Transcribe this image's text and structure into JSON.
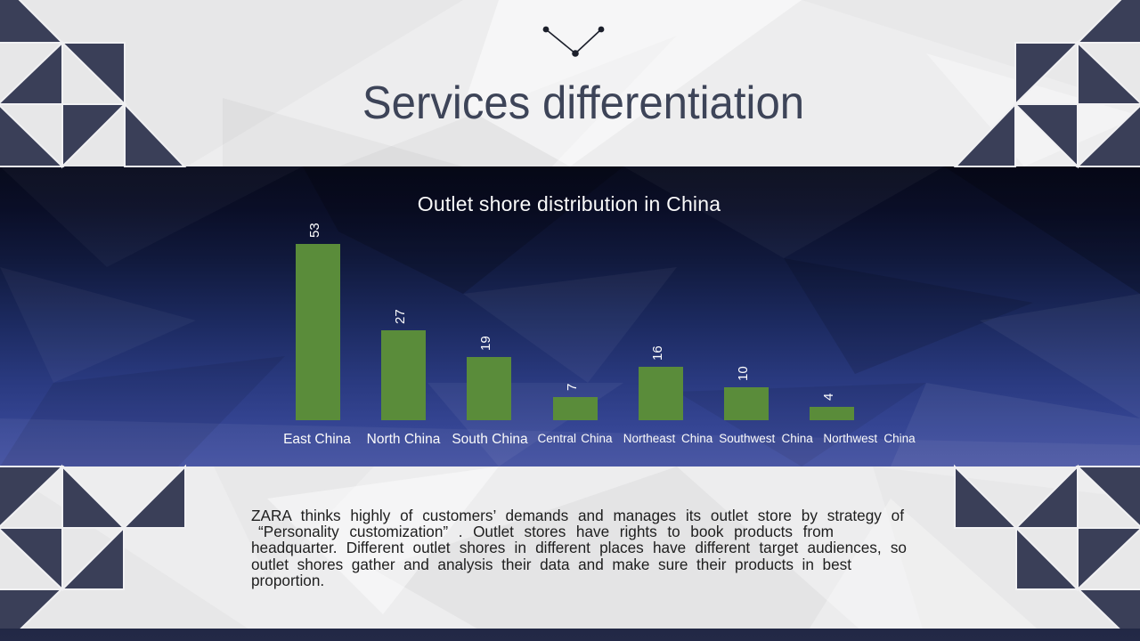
{
  "slide": {
    "title": "Services differentiation",
    "footer_bar": ""
  },
  "chart_data": {
    "type": "bar",
    "title": "Outlet shore distribution in China",
    "categories": [
      "East China",
      "North China",
      "South China",
      "Central China",
      "Northeast China",
      "Southwest China",
      "Northwest China"
    ],
    "values": [
      53,
      27,
      19,
      7,
      16,
      10,
      4
    ],
    "bar_color": "#5a8c3a",
    "value_label_color": "#ffffff",
    "category_label_color": "#fbfbfb",
    "title_color": "#fafafa",
    "grid": "off",
    "legend": "none",
    "value_axis_visible": false,
    "ylim": [
      0,
      53
    ]
  },
  "body_paragraph": {
    "lines": [
      "ZARA thinks highly of customers’  demands and manages its outlet store by strategy of",
      "“Personality customization” . Outlet stores have rights to book products from",
      "headquarter. Different outlet shores in different places have different target audiences, so",
      "outlet shores gather and analysis their data and make sure their products in best",
      "proportion."
    ],
    "text_color": "#1e1e1e"
  },
  "decor": {
    "triangle_color": "#3a3f58",
    "band_top_color": "#090c1f",
    "band_bottom_color": "#44519f",
    "light_bg_color": "#ededee",
    "footer_color": "#232947",
    "motif": "chevron-with-dots"
  }
}
